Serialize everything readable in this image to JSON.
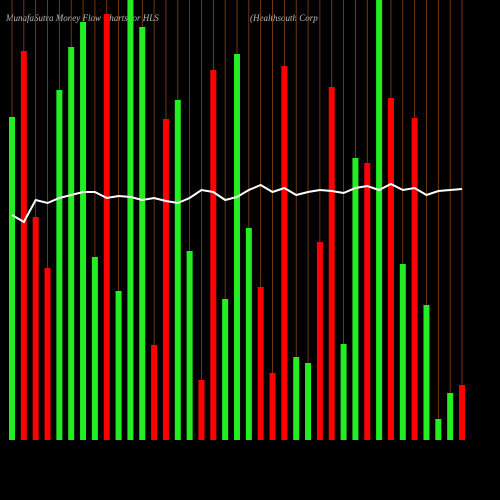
{
  "chart_data": {
    "type": "bar",
    "title": "MunafaSutra  Money Flow  Charts for HLS",
    "subtitle": "(Healthsouth Corp",
    "values": [
      323,
      389,
      223,
      172,
      350,
      393,
      418,
      183,
      426,
      149,
      440,
      413,
      95,
      321,
      340,
      189,
      60,
      370,
      141,
      386,
      212,
      153,
      67,
      374,
      83,
      77,
      198,
      353,
      96,
      282,
      277,
      440,
      342,
      176,
      322,
      135,
      21,
      47,
      55
    ],
    "colors": [
      "#22ee22",
      "#ff0000",
      "#ff0000",
      "#ff0000",
      "#22ee22",
      "#22ee22",
      "#22ee22",
      "#22ee22",
      "#ff0000",
      "#22ee22",
      "#22ee22",
      "#22ee22",
      "#ff0000",
      "#ff0000",
      "#22ee22",
      "#22ee22",
      "#ff0000",
      "#ff0000",
      "#22ee22",
      "#22ee22",
      "#22ee22",
      "#ff0000",
      "#ff0000",
      "#ff0000",
      "#22ee22",
      "#22ee22",
      "#ff0000",
      "#ff0000",
      "#22ee22",
      "#22ee22",
      "#ff0000",
      "#22ee22",
      "#ff0000",
      "#22ee22",
      "#ff0000",
      "#22ee22",
      "#22ee22",
      "#22ee22",
      "#ff0000"
    ],
    "line": {
      "color": "#ffffff",
      "values": [
        225,
        218,
        240,
        237,
        242,
        245,
        248,
        248,
        242,
        244,
        243,
        240,
        242,
        239,
        237,
        242,
        250,
        248,
        240,
        243,
        250,
        255,
        248,
        252,
        245,
        248,
        250,
        249,
        247,
        252,
        254,
        250,
        256,
        250,
        252,
        245,
        249,
        250,
        251
      ]
    },
    "ylim": [
      0,
      440
    ],
    "grid_color": "#8b4513"
  }
}
